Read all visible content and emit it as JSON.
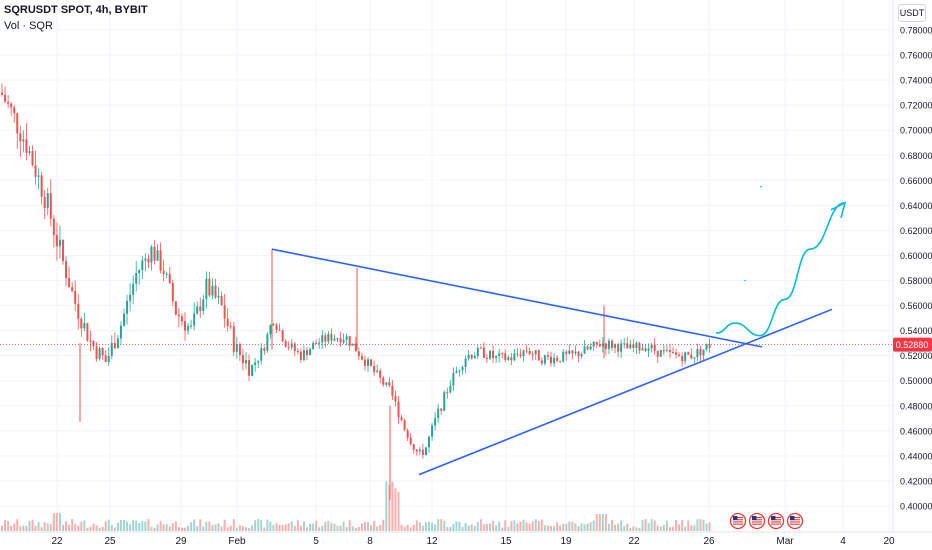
{
  "header": {
    "title": "SQRUSDT SPOT, 4h, BYBIT",
    "volume_label": "Vol · SQR"
  },
  "currency_button": "USDT",
  "price_tag": {
    "text": "0.52880",
    "color": "#f23645",
    "value": 0.5288
  },
  "colors": {
    "up": "#26a69a",
    "down": "#ef5350",
    "vol_up": "#9fd8d3",
    "vol_down": "#f7b0ae",
    "trendline": "#2962ff",
    "projection": "#00bcd4",
    "event_flag": "#e53935"
  },
  "icons": [
    "us-flag-icon",
    "us-flag-icon",
    "us-flag-icon",
    "us-flag-icon"
  ],
  "chart_data": {
    "type": "candlestick",
    "title": "SQRUSDT SPOT, 4h, BYBIT",
    "ylim": [
      0.395,
      0.79
    ],
    "y_ticks": [
      0.78,
      0.76,
      0.74,
      0.72,
      0.7,
      0.68,
      0.66,
      0.64,
      0.62,
      0.6,
      0.58,
      0.56,
      0.54,
      0.52,
      0.5,
      0.48,
      0.46,
      0.44,
      0.42,
      0.4
    ],
    "x_ticks": [
      "22",
      "25",
      "29",
      "Feb",
      "5",
      "8",
      "12",
      "15",
      "19",
      "22",
      "26",
      "Mar",
      "4",
      "20"
    ],
    "volume_label": "Vol · SQR",
    "last_price": 0.5288,
    "anchors": [
      [
        0,
        0.73
      ],
      [
        10,
        0.715
      ],
      [
        25,
        0.69
      ],
      [
        45,
        0.645
      ],
      [
        60,
        0.6
      ],
      [
        75,
        0.56
      ],
      [
        90,
        0.53
      ],
      [
        105,
        0.515
      ],
      [
        120,
        0.545
      ],
      [
        135,
        0.585
      ],
      [
        150,
        0.605
      ],
      [
        162,
        0.59
      ],
      [
        175,
        0.555
      ],
      [
        190,
        0.54
      ],
      [
        205,
        0.575
      ],
      [
        220,
        0.56
      ],
      [
        235,
        0.525
      ],
      [
        250,
        0.51
      ],
      [
        262,
        0.525
      ],
      [
        272,
        0.55
      ],
      [
        285,
        0.53
      ],
      [
        300,
        0.52
      ],
      [
        315,
        0.53
      ],
      [
        330,
        0.535
      ],
      [
        345,
        0.535
      ],
      [
        360,
        0.52
      ],
      [
        375,
        0.505
      ],
      [
        390,
        0.49
      ],
      [
        405,
        0.46
      ],
      [
        418,
        0.44
      ],
      [
        425,
        0.447
      ],
      [
        435,
        0.47
      ],
      [
        450,
        0.5
      ],
      [
        465,
        0.52
      ],
      [
        480,
        0.523
      ],
      [
        495,
        0.518
      ],
      [
        510,
        0.518
      ],
      [
        525,
        0.525
      ],
      [
        540,
        0.518
      ],
      [
        555,
        0.518
      ],
      [
        570,
        0.52
      ],
      [
        585,
        0.524
      ],
      [
        600,
        0.53
      ],
      [
        615,
        0.528
      ],
      [
        630,
        0.525
      ],
      [
        645,
        0.528
      ],
      [
        660,
        0.522
      ],
      [
        675,
        0.52
      ],
      [
        690,
        0.52
      ],
      [
        700,
        0.524
      ],
      [
        710,
        0.529
      ]
    ],
    "trendlines": [
      {
        "name": "upper",
        "from": [
          "Feb 2",
          0.605
        ],
        "to": [
          "Feb 27",
          0.527
        ]
      },
      {
        "name": "lower",
        "from": [
          "Feb 9",
          0.425
        ],
        "to": [
          "Mar 3",
          0.557
        ]
      }
    ],
    "projection": [
      [
        "Feb 26",
        0.538
      ],
      [
        "Feb 27",
        0.545
      ],
      [
        "Feb 28",
        0.535
      ],
      [
        "Mar 1",
        0.575
      ],
      [
        "Mar 2",
        0.62
      ],
      [
        "Mar 3",
        0.642
      ]
    ]
  }
}
